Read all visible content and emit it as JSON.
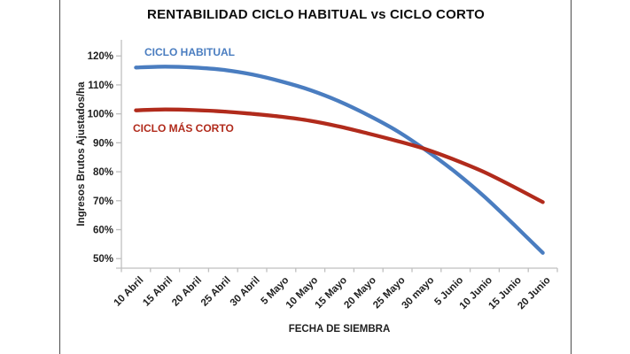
{
  "frame": {
    "background": "#ffffff",
    "border_color": "#4d4d4d"
  },
  "chart_data": {
    "type": "line",
    "title": "RENTABILIDAD CICLO HABITUAL vs CICLO CORTO",
    "xlabel": "FECHA DE SIEMBRA",
    "ylabel": "Ingresos Brutos Ajustados/ha",
    "categories": [
      "10 Abril",
      "15 Abril",
      "20 Abril",
      "25 Abril",
      "30 Abril",
      "5 Mayo",
      "10 Mayo",
      "15 Mayo",
      "20 Mayo",
      "25 Mayo",
      "30 mayo",
      "5 Junio",
      "10 Junio",
      "15 Junio",
      "20 Junio"
    ],
    "series": [
      {
        "name": "CICLO HABITUAL",
        "color": "#4a7dc0",
        "values": [
          116,
          116.3,
          116,
          115.2,
          113.6,
          111.2,
          108.2,
          104.3,
          99.5,
          94,
          87.3,
          79.8,
          71.3,
          61.8,
          52
        ]
      },
      {
        "name": "CICLO MÁS CORTO",
        "color": "#b12b1c",
        "values": [
          101.2,
          101.5,
          101.3,
          100.8,
          100,
          99,
          97.6,
          95.6,
          93.2,
          90.6,
          87.7,
          84,
          79.8,
          74.8,
          69.5
        ]
      }
    ],
    "y_tick_labels": [
      "120%",
      "110%",
      "100%",
      "90%",
      "80%",
      "70%",
      "60%",
      "50%"
    ],
    "y_tick_values": [
      120,
      110,
      100,
      90,
      80,
      70,
      60,
      50
    ],
    "ylim": [
      46.5,
      125.5
    ],
    "grid": false,
    "legend_position": "inline-labels",
    "axis_color": "#bfbfbf",
    "tick_label_color": "#1f1f1f"
  }
}
